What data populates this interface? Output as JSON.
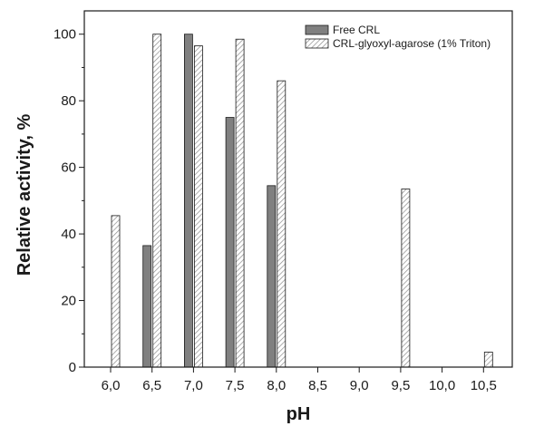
{
  "chart_data": {
    "type": "bar",
    "categories": [
      "6,0",
      "6,5",
      "7,0",
      "7,5",
      "8,0",
      "8,5",
      "9,0",
      "9,5",
      "10,0",
      "10,5"
    ],
    "series": [
      {
        "name": "Free CRL",
        "values": [
          null,
          36.5,
          100,
          75,
          54.5,
          null,
          null,
          null,
          null,
          null
        ],
        "color": "#808080",
        "pattern": "solid"
      },
      {
        "name": "CRL-glyoxyl-agarose (1% Triton)",
        "values": [
          45.5,
          100,
          96.5,
          98.5,
          86,
          null,
          null,
          53.5,
          null,
          4.5
        ],
        "color": "#ffffff",
        "pattern": "diagonal-hatch"
      }
    ],
    "xlabel": "pH",
    "ylabel": "Relative activity, %",
    "ylim": [
      0,
      107
    ],
    "yticks": [
      0,
      20,
      40,
      60,
      80,
      100
    ],
    "grid": false,
    "legend_position": "top-right"
  }
}
